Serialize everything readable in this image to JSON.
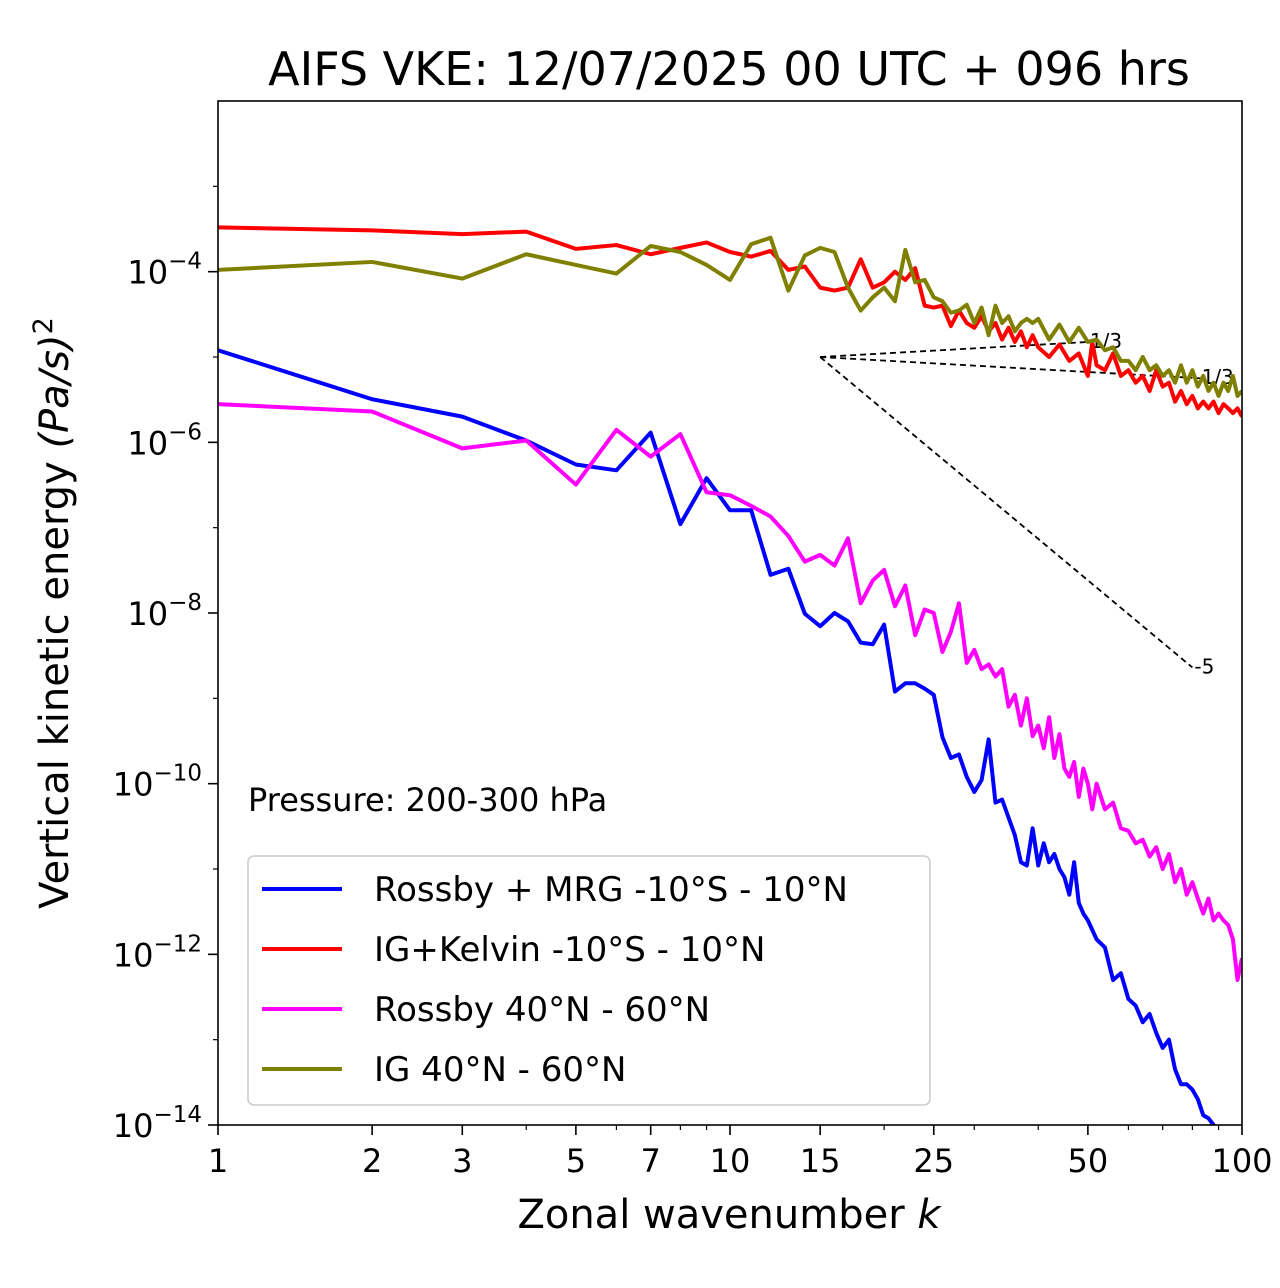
{
  "chart_data": {
    "type": "line",
    "title": "AIFS VKE: 12/07/2025 00 UTC + 096 hrs",
    "xlabel_main": "Zonal wavenumber ",
    "xlabel_var": "k",
    "ylabel_main": "Vertical kinetic energy ",
    "ylabel_var": "(Pa/s)",
    "ylabel_sup": "2",
    "x_scale": "log",
    "y_scale": "log",
    "xlim": [
      1,
      100
    ],
    "ylim": [
      1e-14,
      0.01
    ],
    "x_ticks": [
      1,
      2,
      3,
      5,
      7,
      10,
      15,
      25,
      50,
      100
    ],
    "x_tick_labels": [
      "1",
      "2",
      "3",
      "5",
      "7",
      "10",
      "15",
      "25",
      "50",
      "100"
    ],
    "y_ticks": [
      {
        "value": 0.0001,
        "base": "10",
        "exp": "−4"
      },
      {
        "value": 1e-06,
        "base": "10",
        "exp": "−6"
      },
      {
        "value": 1e-08,
        "base": "10",
        "exp": "−8"
      },
      {
        "value": 1e-10,
        "base": "10",
        "exp": "−10"
      },
      {
        "value": 1e-12,
        "base": "10",
        "exp": "−12"
      },
      {
        "value": 1e-14,
        "base": "10",
        "exp": "−14"
      }
    ],
    "annotation": "Pressure: 200-300 hPa",
    "legend_position": "lower-left",
    "reference_slopes": [
      {
        "label": "1/3",
        "x": [
          15,
          50
        ],
        "y": [
          1e-05,
          1.5e-05
        ]
      },
      {
        "label": "-1/3",
        "x": [
          15,
          80
        ],
        "y": [
          1e-05,
          5.7e-06
        ]
      },
      {
        "label": "-5",
        "x": [
          15,
          80
        ],
        "y": [
          1e-05,
          2.3e-09
        ]
      }
    ],
    "series": [
      {
        "name": "Rossby + MRG -10°S - 10°N",
        "color": "#0000ff",
        "points": [
          [
            1,
            1.2e-05
          ],
          [
            2,
            3.2e-06
          ],
          [
            3,
            2e-06
          ],
          [
            4,
            1.05e-06
          ],
          [
            5,
            5.5e-07
          ],
          [
            6,
            4.7e-07
          ],
          [
            7,
            1.3e-06
          ],
          [
            8,
            1.1e-07
          ],
          [
            9,
            3.8e-07
          ],
          [
            10,
            1.6e-07
          ],
          [
            11,
            1.6e-07
          ],
          [
            12,
            2.8e-08
          ],
          [
            13,
            3.3e-08
          ],
          [
            14,
            9.8e-09
          ],
          [
            15,
            7e-09
          ],
          [
            16,
            1e-08
          ],
          [
            17,
            8e-09
          ],
          [
            18,
            4.5e-09
          ],
          [
            19,
            4.3e-09
          ],
          [
            20,
            7.3e-09
          ],
          [
            21,
            1.2e-09
          ],
          [
            22,
            1.5e-09
          ],
          [
            23,
            1.5e-09
          ],
          [
            24,
            1.3e-09
          ],
          [
            25,
            1.1e-09
          ],
          [
            26,
            3.5e-10
          ],
          [
            27,
            2e-10
          ],
          [
            28,
            2.2e-10
          ],
          [
            29,
            1.2e-10
          ],
          [
            30,
            8e-11
          ],
          [
            31,
            1.1e-10
          ],
          [
            32,
            3.3e-10
          ],
          [
            33,
            6e-11
          ],
          [
            34,
            6.5e-11
          ],
          [
            35,
            4e-11
          ],
          [
            36,
            2.5e-11
          ],
          [
            37,
            1.2e-11
          ],
          [
            38,
            1.1e-11
          ],
          [
            39,
            3e-11
          ],
          [
            40,
            1.1e-11
          ],
          [
            41,
            2e-11
          ],
          [
            42,
            1.2e-11
          ],
          [
            43,
            1.5e-11
          ],
          [
            44,
            1e-11
          ],
          [
            45,
            8e-12
          ],
          [
            46,
            5e-12
          ],
          [
            47,
            1.2e-11
          ],
          [
            48,
            4e-12
          ],
          [
            49,
            3e-12
          ],
          [
            50,
            2.5e-12
          ],
          [
            52,
            1.5e-12
          ],
          [
            54,
            1.2e-12
          ],
          [
            56,
            5e-13
          ],
          [
            58,
            6e-13
          ],
          [
            60,
            3e-13
          ],
          [
            62,
            2.5e-13
          ],
          [
            64,
            1.6e-13
          ],
          [
            66,
            2e-13
          ],
          [
            68,
            1.2e-13
          ],
          [
            70,
            8e-14
          ],
          [
            72,
            1e-13
          ],
          [
            74,
            4.5e-14
          ],
          [
            76,
            3e-14
          ],
          [
            78,
            3e-14
          ],
          [
            80,
            2.6e-14
          ],
          [
            82,
            2e-14
          ],
          [
            84,
            1.3e-14
          ],
          [
            86,
            1.2e-14
          ],
          [
            88,
            1e-14
          ],
          [
            90,
            8e-15
          ],
          [
            92,
            6e-15
          ],
          [
            94,
            8e-15
          ],
          [
            96,
            5e-15
          ],
          [
            98,
            8e-15
          ],
          [
            100,
            6e-15
          ]
        ]
      },
      {
        "name": "IG+Kelvin -10°S - 10°N",
        "color": "#ff0000",
        "points": [
          [
            1,
            0.00033
          ],
          [
            2,
            0.000305
          ],
          [
            3,
            0.000275
          ],
          [
            4,
            0.000295
          ],
          [
            5,
            0.000185
          ],
          [
            6,
            0.000205
          ],
          [
            7,
            0.00016
          ],
          [
            8,
            0.00019
          ],
          [
            9,
            0.00022
          ],
          [
            10,
            0.00017
          ],
          [
            11,
            0.00015
          ],
          [
            12,
            0.000175
          ],
          [
            13,
            0.000105
          ],
          [
            14,
            0.000115
          ],
          [
            15,
            6.5e-05
          ],
          [
            16,
            6e-05
          ],
          [
            17,
            6.5e-05
          ],
          [
            18,
            0.00014
          ],
          [
            19,
            6.5e-05
          ],
          [
            20,
            7.5e-05
          ],
          [
            21,
            0.0001
          ],
          [
            22,
            8e-05
          ],
          [
            23,
            0.00011
          ],
          [
            24,
            4e-05
          ],
          [
            25,
            3.8e-05
          ],
          [
            26,
            4e-05
          ],
          [
            27,
            2.3e-05
          ],
          [
            28,
            3.5e-05
          ],
          [
            29,
            2.5e-05
          ],
          [
            30,
            2.2e-05
          ],
          [
            31,
            3e-05
          ],
          [
            32,
            2e-05
          ],
          [
            33,
            2.5e-05
          ],
          [
            34,
            1.6e-05
          ],
          [
            35,
            2.2e-05
          ],
          [
            36,
            1.5e-05
          ],
          [
            37,
            2e-05
          ],
          [
            38,
            1.3e-05
          ],
          [
            39,
            1.8e-05
          ],
          [
            40,
            1.3e-05
          ],
          [
            42,
            1e-05
          ],
          [
            44,
            1.4e-05
          ],
          [
            46,
            9e-06
          ],
          [
            48,
            1.1e-05
          ],
          [
            50,
            6e-06
          ],
          [
            51,
            1.5e-05
          ],
          [
            52,
            8e-06
          ],
          [
            54,
            7e-06
          ],
          [
            56,
            1.1e-05
          ],
          [
            58,
            6e-06
          ],
          [
            60,
            7e-06
          ],
          [
            62,
            5e-06
          ],
          [
            64,
            6e-06
          ],
          [
            66,
            4e-06
          ],
          [
            68,
            7e-06
          ],
          [
            70,
            4.5e-06
          ],
          [
            72,
            5e-06
          ],
          [
            74,
            3e-06
          ],
          [
            76,
            4e-06
          ],
          [
            78,
            2.8e-06
          ],
          [
            80,
            3.5e-06
          ],
          [
            82,
            2.5e-06
          ],
          [
            84,
            3e-06
          ],
          [
            86,
            2.5e-06
          ],
          [
            88,
            3e-06
          ],
          [
            90,
            2.2e-06
          ],
          [
            92,
            2.8e-06
          ],
          [
            94,
            2.5e-06
          ],
          [
            96,
            2.2e-06
          ],
          [
            98,
            2.5e-06
          ],
          [
            100,
            2e-06
          ]
        ]
      },
      {
        "name": "Rossby 40°N - 60°N",
        "color": "#ff00ff",
        "points": [
          [
            1,
            2.8e-06
          ],
          [
            2,
            2.3e-06
          ],
          [
            3,
            8.5e-07
          ],
          [
            4,
            1.05e-06
          ],
          [
            5,
            3.2e-07
          ],
          [
            6,
            1.4e-06
          ],
          [
            7,
            6.8e-07
          ],
          [
            8,
            1.25e-06
          ],
          [
            9,
            2.6e-07
          ],
          [
            10,
            2.4e-07
          ],
          [
            11,
            1.8e-07
          ],
          [
            12,
            1.35e-07
          ],
          [
            13,
            8e-08
          ],
          [
            14,
            4e-08
          ],
          [
            15,
            4.8e-08
          ],
          [
            16,
            3.6e-08
          ],
          [
            17,
            7.5e-08
          ],
          [
            18,
            1.3e-08
          ],
          [
            19,
            2.4e-08
          ],
          [
            20,
            3.2e-08
          ],
          [
            21,
            1.2e-08
          ],
          [
            22,
            2.1e-08
          ],
          [
            23,
            5.5e-09
          ],
          [
            24,
            1.1e-08
          ],
          [
            25,
            1e-08
          ],
          [
            26,
            3.5e-09
          ],
          [
            27,
            6e-09
          ],
          [
            28,
            1.3e-08
          ],
          [
            29,
            2.6e-09
          ],
          [
            30,
            3.7e-09
          ],
          [
            31,
            2.2e-09
          ],
          [
            32,
            2.5e-09
          ],
          [
            33,
            1.8e-09
          ],
          [
            34,
            2.2e-09
          ],
          [
            35,
            8e-10
          ],
          [
            36,
            1.1e-09
          ],
          [
            37,
            4.8e-10
          ],
          [
            38,
            1e-09
          ],
          [
            39,
            3.6e-10
          ],
          [
            40,
            4.8e-10
          ],
          [
            41,
            2.6e-10
          ],
          [
            42,
            6e-10
          ],
          [
            43,
            2e-10
          ],
          [
            44,
            3.8e-10
          ],
          [
            45,
            1.5e-10
          ],
          [
            46,
            1.2e-10
          ],
          [
            47,
            1.8e-10
          ],
          [
            48,
            7e-11
          ],
          [
            49,
            1.5e-10
          ],
          [
            50,
            1e-10
          ],
          [
            51,
            5e-11
          ],
          [
            52,
            1e-10
          ],
          [
            54,
            5e-11
          ],
          [
            56,
            6e-11
          ],
          [
            58,
            3e-11
          ],
          [
            60,
            2.8e-11
          ],
          [
            62,
            2e-11
          ],
          [
            64,
            2.2e-11
          ],
          [
            66,
            1.4e-11
          ],
          [
            68,
            1.8e-11
          ],
          [
            70,
            1e-11
          ],
          [
            72,
            1.5e-11
          ],
          [
            74,
            7e-12
          ],
          [
            76,
            1e-11
          ],
          [
            78,
            5e-12
          ],
          [
            80,
            7e-12
          ],
          [
            82,
            4.5e-12
          ],
          [
            84,
            3e-12
          ],
          [
            86,
            4.5e-12
          ],
          [
            88,
            2.5e-12
          ],
          [
            90,
            3e-12
          ],
          [
            92,
            2.5e-12
          ],
          [
            94,
            2.2e-12
          ],
          [
            96,
            1.5e-12
          ],
          [
            98,
            5e-13
          ],
          [
            100,
            9e-13
          ]
        ]
      },
      {
        "name": "IG 40°N - 60°N",
        "color": "#808000",
        "points": [
          [
            1,
            0.000105
          ],
          [
            2,
            0.00013
          ],
          [
            3,
            8.3e-05
          ],
          [
            4,
            0.00016
          ],
          [
            5,
            0.00012
          ],
          [
            6,
            9.5e-05
          ],
          [
            7,
            0.0002
          ],
          [
            8,
            0.00017
          ],
          [
            9,
            0.00012
          ],
          [
            10,
            8e-05
          ],
          [
            11,
            0.00021
          ],
          [
            12,
            0.00025
          ],
          [
            13,
            6e-05
          ],
          [
            14,
            0.000155
          ],
          [
            15,
            0.00019
          ],
          [
            16,
            0.00017
          ],
          [
            17,
            6.5e-05
          ],
          [
            18,
            3.5e-05
          ],
          [
            19,
            5e-05
          ],
          [
            20,
            6.5e-05
          ],
          [
            21,
            4.5e-05
          ],
          [
            22,
            0.00018
          ],
          [
            23,
            7.5e-05
          ],
          [
            24,
            8e-05
          ],
          [
            25,
            5e-05
          ],
          [
            26,
            4.5e-05
          ],
          [
            27,
            3.3e-05
          ],
          [
            28,
            3.5e-05
          ],
          [
            29,
            4.1e-05
          ],
          [
            30,
            2.5e-05
          ],
          [
            31,
            3.8e-05
          ],
          [
            32,
            1.8e-05
          ],
          [
            33,
            4e-05
          ],
          [
            34,
            2.5e-05
          ],
          [
            35,
            3e-05
          ],
          [
            36,
            2e-05
          ],
          [
            37,
            2.5e-05
          ],
          [
            38,
            2.8e-05
          ],
          [
            39,
            2.5e-05
          ],
          [
            40,
            2.8e-05
          ],
          [
            42,
            1.6e-05
          ],
          [
            44,
            2.4e-05
          ],
          [
            46,
            1.5e-05
          ],
          [
            48,
            2.2e-05
          ],
          [
            50,
            1.5e-05
          ],
          [
            52,
            1.6e-05
          ],
          [
            54,
            1.2e-05
          ],
          [
            56,
            1.3e-05
          ],
          [
            58,
            9e-06
          ],
          [
            60,
            9e-06
          ],
          [
            62,
            7e-06
          ],
          [
            64,
            1e-05
          ],
          [
            66,
            7e-06
          ],
          [
            68,
            8e-06
          ],
          [
            70,
            6e-06
          ],
          [
            72,
            7e-06
          ],
          [
            74,
            5e-06
          ],
          [
            76,
            8e-06
          ],
          [
            78,
            5e-06
          ],
          [
            80,
            7e-06
          ],
          [
            82,
            4.5e-06
          ],
          [
            84,
            6e-06
          ],
          [
            86,
            4e-06
          ],
          [
            88,
            5e-06
          ],
          [
            90,
            3.5e-06
          ],
          [
            92,
            5e-06
          ],
          [
            94,
            4e-06
          ],
          [
            96,
            6e-06
          ],
          [
            98,
            3.5e-06
          ],
          [
            100,
            4e-06
          ]
        ]
      }
    ]
  }
}
